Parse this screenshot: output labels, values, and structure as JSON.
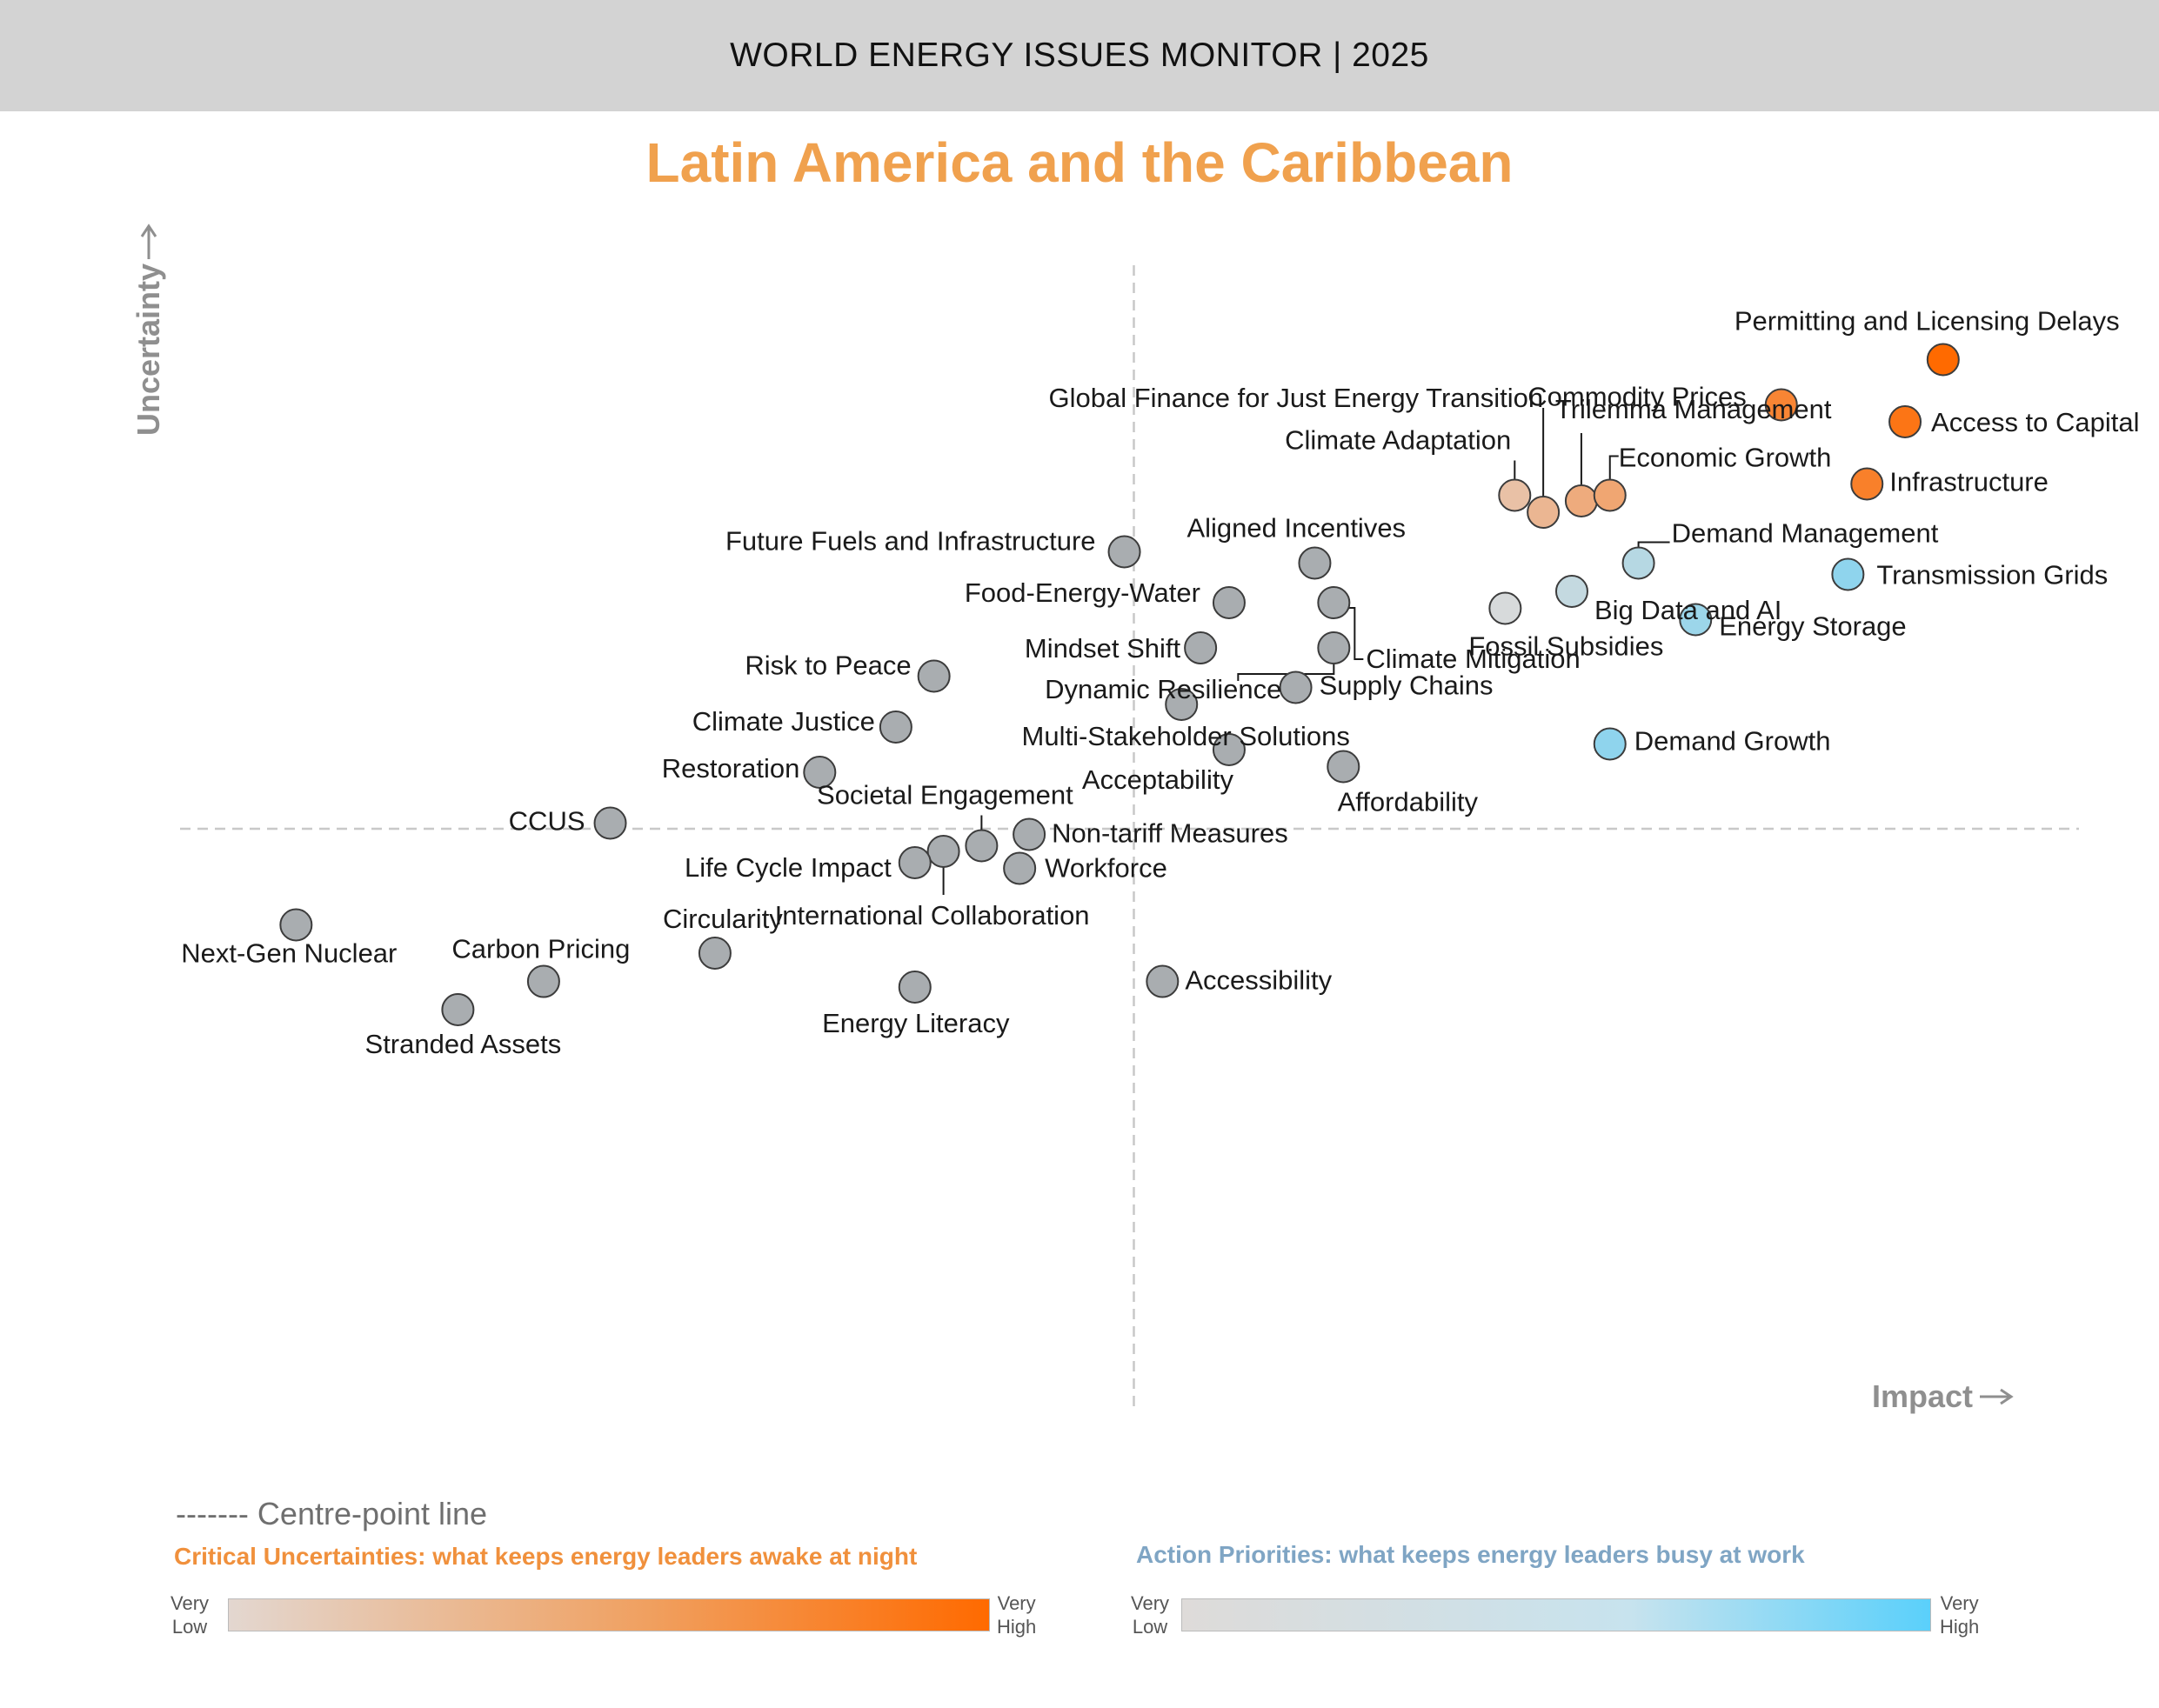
{
  "header": {
    "title": "WORLD ENERGY ISSUES MONITOR | 2025"
  },
  "region_title": "Latin America and the Caribbean",
  "chart_data": {
    "type": "scatter",
    "title": "Latin America and the Caribbean",
    "xlabel": "Impact",
    "ylabel": "Uncertainty",
    "xlim": [
      0,
      100
    ],
    "ylim": [
      0,
      100
    ],
    "centre": {
      "x": 50,
      "y": 50
    },
    "centre_line_label": "------- Centre-point line",
    "series": [
      {
        "category": "critical",
        "level": 1.0,
        "label": "Permitting and Licensing Delays",
        "x": 92.5,
        "y": 91.5
      },
      {
        "category": "critical",
        "level": 0.75,
        "label": "Commodity Prices",
        "x": 84.0,
        "y": 87.5
      },
      {
        "category": "critical",
        "level": 0.9,
        "label": "Access to Capital",
        "x": 90.5,
        "y": 86.0
      },
      {
        "category": "critical",
        "level": 0.8,
        "label": "Infrastructure",
        "x": 88.5,
        "y": 80.5
      },
      {
        "category": "critical",
        "level": 0.4,
        "label": "Trilemma Management",
        "x": 73.5,
        "y": 79.0
      },
      {
        "category": "critical",
        "level": 0.45,
        "label": "Economic Growth",
        "x": 75.0,
        "y": 79.5
      },
      {
        "category": "critical",
        "level": 0.2,
        "label": "Climate Adaptation",
        "x": 70.0,
        "y": 79.5
      },
      {
        "category": "critical",
        "level": 0.3,
        "label": "Global Finance for Just Energy Transition",
        "x": 71.5,
        "y": 78.0
      },
      {
        "category": "action",
        "level": 0.3,
        "label": "Demand Management",
        "x": 76.5,
        "y": 73.5
      },
      {
        "category": "action",
        "level": 0.6,
        "label": "Transmission Grids",
        "x": 87.5,
        "y": 72.5
      },
      {
        "category": "action",
        "level": 0.2,
        "label": "Big Data and AI",
        "x": 73.0,
        "y": 71.0
      },
      {
        "category": "action",
        "level": 0.05,
        "label": "Fossil Subsidies",
        "x": 69.5,
        "y": 69.5
      },
      {
        "category": "action",
        "level": 0.5,
        "label": "Energy Storage",
        "x": 79.5,
        "y": 68.5
      },
      {
        "category": "action",
        "level": 0.6,
        "label": "Demand Growth",
        "x": 75.0,
        "y": 57.5
      },
      {
        "category": "neutral",
        "label": "Future Fuels and Infrastructure",
        "x": 49.5,
        "y": 74.5
      },
      {
        "category": "neutral",
        "label": "Aligned Incentives",
        "x": 59.5,
        "y": 73.5
      },
      {
        "category": "neutral",
        "label": "Food-Energy-Water",
        "x": 55.0,
        "y": 70.0
      },
      {
        "category": "neutral",
        "label": "Climate Mitigation",
        "x": 60.5,
        "y": 70.0
      },
      {
        "category": "neutral",
        "label": "Dynamic Resilience",
        "x": 60.5,
        "y": 66.0
      },
      {
        "category": "neutral",
        "label": "Mindset Shift",
        "x": 53.5,
        "y": 66.0
      },
      {
        "category": "neutral",
        "label": "Supply Chains",
        "x": 58.5,
        "y": 62.5
      },
      {
        "category": "neutral",
        "label": "Risk to Peace",
        "x": 39.5,
        "y": 63.5
      },
      {
        "category": "neutral",
        "label": "Multi-Stakeholder Solutions",
        "x": 52.5,
        "y": 61.0
      },
      {
        "category": "neutral",
        "label": "Climate Justice",
        "x": 37.5,
        "y": 59.0
      },
      {
        "category": "neutral",
        "label": "Acceptability",
        "x": 55.0,
        "y": 57.0
      },
      {
        "category": "neutral",
        "label": "Affordability",
        "x": 61.0,
        "y": 55.5
      },
      {
        "category": "neutral",
        "label": "Restoration",
        "x": 33.5,
        "y": 55.0
      },
      {
        "category": "neutral",
        "label": "CCUS",
        "x": 22.5,
        "y": 50.5
      },
      {
        "category": "neutral",
        "label": "Non-tariff Measures",
        "x": 44.5,
        "y": 49.5
      },
      {
        "category": "neutral",
        "label": "Societal Engagement",
        "x": 42.0,
        "y": 48.5
      },
      {
        "category": "neutral",
        "label": "International Collaboration",
        "x": 40.0,
        "y": 48.0
      },
      {
        "category": "neutral",
        "label": "Life Cycle Impact",
        "x": 38.5,
        "y": 47.0
      },
      {
        "category": "neutral",
        "label": "Workforce",
        "x": 44.0,
        "y": 46.5
      },
      {
        "category": "neutral",
        "label": "Next-Gen Nuclear",
        "x": 6.0,
        "y": 41.5
      },
      {
        "category": "neutral",
        "label": "Circularity",
        "x": 28.0,
        "y": 39.0
      },
      {
        "category": "neutral",
        "label": "Carbon Pricing",
        "x": 19.0,
        "y": 36.5
      },
      {
        "category": "neutral",
        "label": "Energy Literacy",
        "x": 38.5,
        "y": 36.0
      },
      {
        "category": "neutral",
        "label": "Accessibility",
        "x": 51.5,
        "y": 36.5
      },
      {
        "category": "neutral",
        "label": "Stranded Assets",
        "x": 14.5,
        "y": 34.0
      }
    ],
    "colors": {
      "critical_low": "#e3d7d0",
      "critical_high": "#ff6a00",
      "action_low": "#dedbd9",
      "action_high": "#5ad0fb",
      "neutral": "#a9adb0",
      "axis_label": "#8f8f8f",
      "centre_line": "#c8c8c8"
    }
  },
  "legend": {
    "centre_line": "------- Centre-point line",
    "critical": {
      "title": "Critical Uncertainties: what keeps energy leaders awake at night",
      "low": [
        "Very",
        "Low"
      ],
      "high": [
        "Very",
        "High"
      ]
    },
    "action": {
      "title": "Action Priorities: what keeps energy leaders busy at work",
      "low": [
        "Very",
        "Low"
      ],
      "high": [
        "Very",
        "High"
      ]
    }
  }
}
